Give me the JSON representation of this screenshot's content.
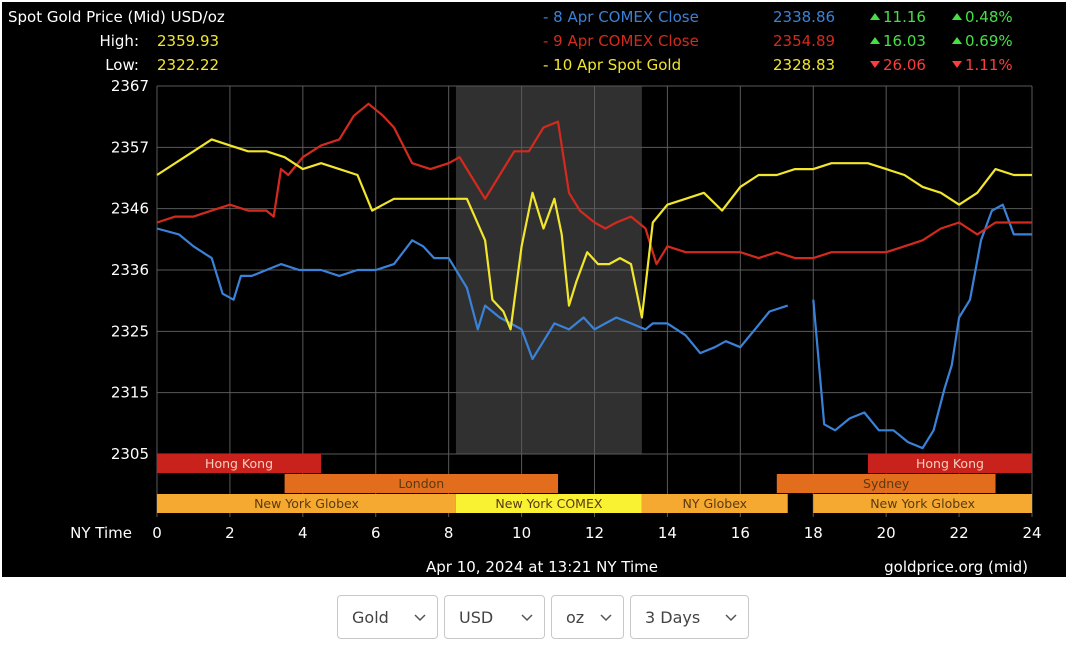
{
  "chart_data": {
    "type": "line",
    "title": "Spot Gold Price (Mid) USD/oz",
    "high": {
      "label": "High:",
      "value": "2359.93"
    },
    "low": {
      "label": "Low:",
      "value": "2322.22"
    },
    "xlabel": "NY Time",
    "xlim": [
      0,
      24
    ],
    "ylim": [
      2305,
      2367
    ],
    "x_ticks": [
      "0",
      "2",
      "4",
      "6",
      "8",
      "10",
      "12",
      "14",
      "16",
      "18",
      "20",
      "22",
      "24"
    ],
    "y_ticks": [
      "2367",
      "2357",
      "2346",
      "2336",
      "2325",
      "2315",
      "2305"
    ],
    "grid": true,
    "legend": [
      {
        "label": "- 8 Apr COMEX Close",
        "price": "2338.86",
        "change": "11.16",
        "pct": "0.48%",
        "dir": "up",
        "color": "#3a82d8"
      },
      {
        "label": "- 9 Apr COMEX Close",
        "price": "2354.89",
        "change": "16.03",
        "pct": "0.69%",
        "dir": "up",
        "color": "#d42a1e"
      },
      {
        "label": "- 10 Apr Spot Gold",
        "price": "2328.83",
        "change": "26.06",
        "pct": "1.11%",
        "dir": "down",
        "color": "#f2e62c"
      }
    ],
    "shaded_region": {
      "from": 8.2,
      "to": 13.3
    },
    "series": [
      {
        "name": "8 Apr COMEX Close",
        "color": "#3a82d8",
        "breaks_after_x": [
          17.3
        ],
        "x": [
          0,
          0.6,
          1,
          1.5,
          1.8,
          2.1,
          2.3,
          2.6,
          3,
          3.4,
          3.9,
          4.5,
          5,
          5.5,
          6,
          6.5,
          7,
          7.3,
          7.6,
          8,
          8.5,
          8.8,
          9,
          9.4,
          9.7,
          10,
          10.3,
          10.6,
          10.9,
          11.3,
          11.7,
          12,
          12.3,
          12.6,
          13,
          13.4,
          13.6,
          14,
          14.5,
          14.9,
          15.3,
          15.6,
          16,
          16.4,
          16.8,
          17.3,
          18,
          18.3,
          18.6,
          19,
          19.4,
          19.8,
          20.2,
          20.6,
          21,
          21.3,
          21.6,
          21.8,
          22,
          22.3,
          22.6,
          22.9,
          23.2,
          23.5,
          24
        ],
        "y": [
          2343,
          2342,
          2340,
          2338,
          2332,
          2331,
          2335,
          2335,
          2336,
          2337,
          2336,
          2336,
          2335,
          2336,
          2336,
          2337,
          2341,
          2340,
          2338,
          2338,
          2333,
          2326,
          2330,
          2328,
          2327,
          2326,
          2321,
          2324,
          2327,
          2326,
          2328,
          2326,
          2327,
          2328,
          2327,
          2326,
          2327,
          2327,
          2325,
          2322,
          2323,
          2324,
          2323,
          2326,
          2329,
          2330,
          2331,
          2310,
          2309,
          2311,
          2312,
          2309,
          2309,
          2307,
          2306,
          2309,
          2316,
          2320,
          2328,
          2331,
          2341,
          2346,
          2347,
          2342,
          2342
        ]
      },
      {
        "name": "9 Apr COMEX Close",
        "color": "#d42a1e",
        "x": [
          0,
          0.5,
          1,
          1.5,
          2,
          2.5,
          3,
          3.2,
          3.4,
          3.6,
          4,
          4.5,
          5,
          5.4,
          5.8,
          6.2,
          6.5,
          7,
          7.5,
          8,
          8.3,
          8.6,
          9,
          9.4,
          9.8,
          10.2,
          10.6,
          11,
          11.3,
          11.6,
          12,
          12.3,
          12.6,
          13,
          13.4,
          13.7,
          14,
          14.5,
          15,
          15.5,
          16,
          16.5,
          17,
          17.5,
          18,
          18.5,
          19,
          19.5,
          20,
          20.5,
          21,
          21.5,
          22,
          22.5,
          23,
          23.5,
          24
        ],
        "y": [
          2344,
          2345,
          2345,
          2346,
          2347,
          2346,
          2346,
          2345,
          2353,
          2352,
          2355,
          2357,
          2358,
          2362,
          2364,
          2362,
          2360,
          2354,
          2353,
          2354,
          2355,
          2352,
          2348,
          2352,
          2356,
          2356,
          2360,
          2361,
          2349,
          2346,
          2344,
          2343,
          2344,
          2345,
          2343,
          2337,
          2340,
          2339,
          2339,
          2339,
          2339,
          2338,
          2339,
          2338,
          2338,
          2339,
          2339,
          2339,
          2339,
          2340,
          2341,
          2343,
          2344,
          2342,
          2344,
          2344,
          2344
        ]
      },
      {
        "name": "10 Apr Spot Gold",
        "color": "#f2e62c",
        "x": [
          0,
          0.5,
          1,
          1.5,
          2,
          2.5,
          3,
          3.5,
          4,
          4.5,
          5,
          5.5,
          5.9,
          6.2,
          6.5,
          7,
          7.5,
          8,
          8.5,
          9,
          9.2,
          9.5,
          9.7,
          10,
          10.3,
          10.6,
          10.9,
          11.1,
          11.3,
          11.5,
          11.8,
          12.1,
          12.4,
          12.7,
          13,
          13.3,
          13.6,
          14,
          14.5,
          15,
          15.5,
          16,
          16.5,
          17,
          17.5,
          18,
          18.5,
          19,
          19.5,
          20,
          20.5,
          21,
          21.5,
          22,
          22.5,
          23,
          23.5,
          24
        ],
        "y": [
          2352,
          2354,
          2356,
          2358,
          2357,
          2356,
          2356,
          2355,
          2353,
          2354,
          2353,
          2352,
          2346,
          2347,
          2348,
          2348,
          2348,
          2348,
          2348,
          2341,
          2331,
          2329,
          2326,
          2340,
          2349,
          2343,
          2348,
          2342,
          2330,
          2334,
          2339,
          2337,
          2337,
          2338,
          2337,
          2328,
          2344,
          2347,
          2348,
          2349,
          2346,
          2350,
          2352,
          2352,
          2353,
          2353,
          2354,
          2354,
          2354,
          2353,
          2352,
          2350,
          2349,
          2347,
          2349,
          2353,
          2352,
          2352
        ]
      }
    ],
    "sessions": [
      {
        "name": "Hong Kong",
        "from": 0,
        "to": 4.5,
        "row": 0,
        "color": "#c9211c"
      },
      {
        "name": "Hong Kong",
        "from": 19.5,
        "to": 24,
        "row": 0,
        "color": "#c9211c"
      },
      {
        "name": "London",
        "from": 3.5,
        "to": 11,
        "row": 1,
        "color": "#e26d1d"
      },
      {
        "name": "Sydney",
        "from": 17,
        "to": 23,
        "row": 1,
        "color": "#e26d1d"
      },
      {
        "name": "New York Globex",
        "from": 0,
        "to": 8.2,
        "row": 2,
        "color": "#f5a930"
      },
      {
        "name": "New York COMEX",
        "from": 8.2,
        "to": 13.3,
        "row": 2,
        "color": "#f8f232"
      },
      {
        "name": "NY Globex",
        "from": 13.3,
        "to": 17.3,
        "row": 2,
        "color": "#f5a930"
      },
      {
        "name": "New York Globex",
        "from": 18,
        "to": 24,
        "row": 2,
        "color": "#f5a930"
      }
    ],
    "footer_left": "Apr 10, 2024 at 13:21 NY Time",
    "footer_right": "goldprice.org (mid)"
  },
  "controls": {
    "metal": "Gold",
    "currency": "USD",
    "unit": "oz",
    "range": "3 Days"
  }
}
